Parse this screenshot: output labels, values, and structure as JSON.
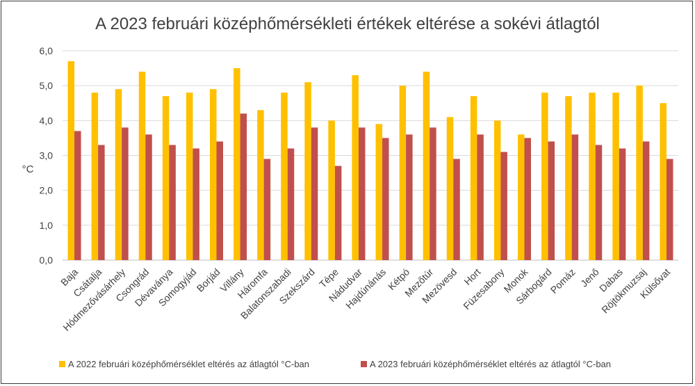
{
  "chart_data": {
    "type": "bar",
    "title": "A 2023 februári középhőmérsékleti értékek eltérése a sokévi átlagtól",
    "ylabel": "°C",
    "xlabel": "",
    "ylim": [
      0,
      6
    ],
    "yticks": [
      "0,0",
      "1,0",
      "2,0",
      "3,0",
      "4,0",
      "5,0",
      "6,0"
    ],
    "grid": true,
    "legend_position": "bottom",
    "categories": [
      "Baja",
      "Csátalja",
      "Hódmezővásárhely",
      "Csongrád",
      "Dévaványa",
      "Somogyjád",
      "Borjád",
      "Villány",
      "Háromfa",
      "Balatonszabadi",
      "Szekszárd",
      "Tépe",
      "Nádudvar",
      "Hajdúnánás",
      "Kétpó",
      "Mezőtúr",
      "Mezövesd",
      "Hort",
      "Füzesabony",
      "Monok",
      "Sárbogárd",
      "Pomáz",
      "Jenő",
      "Dabas",
      "Röjtökmuzsaj",
      "Külsővat"
    ],
    "series": [
      {
        "name": "A 2022 februári középhőmérséklet eltérés az átlagtól  °C-ban",
        "color": "#FFC000",
        "values": [
          5.7,
          4.8,
          4.9,
          5.4,
          4.7,
          4.8,
          4.9,
          5.5,
          4.3,
          4.8,
          5.1,
          4.0,
          5.3,
          3.9,
          5.0,
          5.4,
          4.1,
          4.7,
          4.0,
          3.6,
          4.8,
          4.7,
          4.8,
          4.8,
          5.0,
          4.5
        ]
      },
      {
        "name": "A 2023 februári középhőmérséklet eltérés az átlagtól  °C-ban",
        "color": "#C0504D",
        "values": [
          3.7,
          3.3,
          3.8,
          3.6,
          3.3,
          3.2,
          3.4,
          4.2,
          2.9,
          3.2,
          3.8,
          2.7,
          3.8,
          3.5,
          3.6,
          3.8,
          2.9,
          3.6,
          3.1,
          3.5,
          3.4,
          3.6,
          3.3,
          3.2,
          3.4,
          2.9
        ]
      }
    ]
  }
}
